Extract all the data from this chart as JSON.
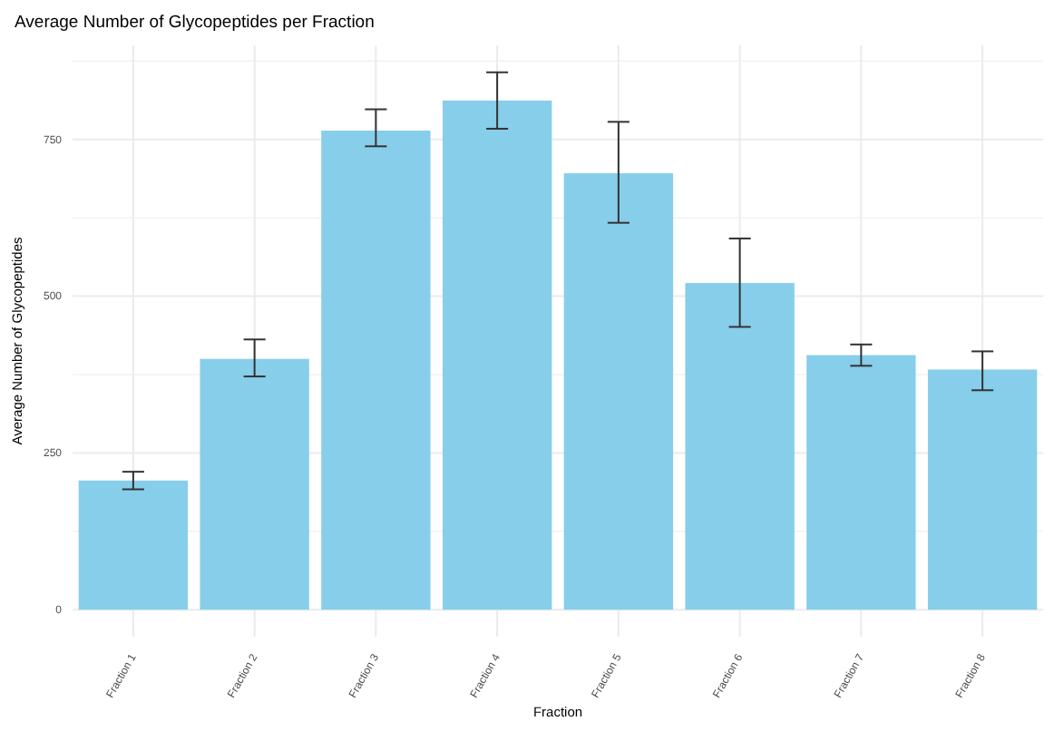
{
  "chart_data": {
    "type": "bar",
    "title": "Average Number of Glycopeptides per Fraction",
    "xlabel": "Fraction",
    "ylabel": "Average Number of Glycopeptides",
    "categories": [
      "Fraction 1",
      "Fraction 2",
      "Fraction 3",
      "Fraction 4",
      "Fraction 5",
      "Fraction 6",
      "Fraction 7",
      "Fraction 8"
    ],
    "values": [
      206,
      400,
      764,
      812,
      696,
      521,
      406,
      383
    ],
    "errors": [
      [
        192,
        220
      ],
      [
        372,
        431
      ],
      [
        739,
        798
      ],
      [
        767,
        857
      ],
      [
        617,
        778
      ],
      [
        451,
        592
      ],
      [
        389,
        423
      ],
      [
        350,
        412
      ]
    ],
    "color": "#87ceeb",
    "ylim": [
      -43,
      900
    ],
    "yticks": [
      0,
      {
        "value": 125,
        "label": null
      },
      250,
      {
        "value": 375,
        "label": null
      },
      500,
      {
        "value": 625,
        "label": null
      },
      750,
      {
        "value": 875,
        "label": null
      }
    ],
    "grid": true
  }
}
